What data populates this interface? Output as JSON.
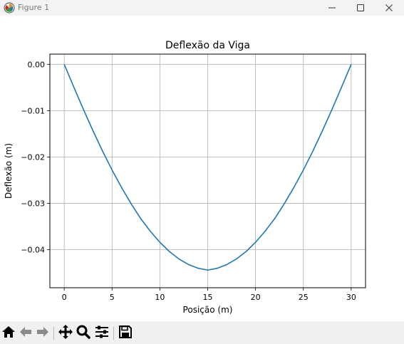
{
  "window": {
    "title": "Figure 1",
    "icons": [
      "matplotlib-logo-icon",
      "minimize-icon",
      "maximize-icon",
      "close-icon"
    ]
  },
  "toolbar": {
    "icons": [
      "home-icon",
      "back-icon",
      "forward-icon",
      "pan-icon",
      "zoom-icon",
      "configure-subplots-icon",
      "save-icon"
    ]
  },
  "chart_data": {
    "type": "line",
    "title": "Deflexão da Viga",
    "xlabel": "Posição (m)",
    "ylabel": "Deflexão (m)",
    "xlim": [
      -1.5,
      31.5
    ],
    "ylim": [
      -0.0482,
      0.0022
    ],
    "xticks": [
      0,
      5,
      10,
      15,
      20,
      25,
      30
    ],
    "xtick_labels": [
      "0",
      "5",
      "10",
      "15",
      "20",
      "25",
      "30"
    ],
    "yticks": [
      0.0,
      -0.01,
      -0.02,
      -0.03,
      -0.04
    ],
    "ytick_labels": [
      "0.00",
      "−0.01",
      "−0.02",
      "−0.03",
      "−0.04"
    ],
    "grid": true,
    "series": [
      {
        "color": "#1f77b4",
        "x": [
          0,
          1,
          2,
          3,
          4,
          5,
          6,
          7,
          8,
          9,
          10,
          11,
          12,
          13,
          14,
          15,
          16,
          17,
          18,
          19,
          20,
          21,
          22,
          23,
          24,
          25,
          26,
          27,
          28,
          29,
          30
        ],
        "y": [
          0.0,
          -0.0049,
          -0.0097,
          -0.0143,
          -0.0187,
          -0.0228,
          -0.0266,
          -0.0301,
          -0.0333,
          -0.036,
          -0.0384,
          -0.0404,
          -0.042,
          -0.0432,
          -0.044,
          -0.0444,
          -0.044,
          -0.0432,
          -0.042,
          -0.0404,
          -0.0384,
          -0.036,
          -0.0333,
          -0.0301,
          -0.0266,
          -0.0228,
          -0.0187,
          -0.0143,
          -0.0097,
          -0.0049,
          0.0
        ]
      }
    ]
  }
}
